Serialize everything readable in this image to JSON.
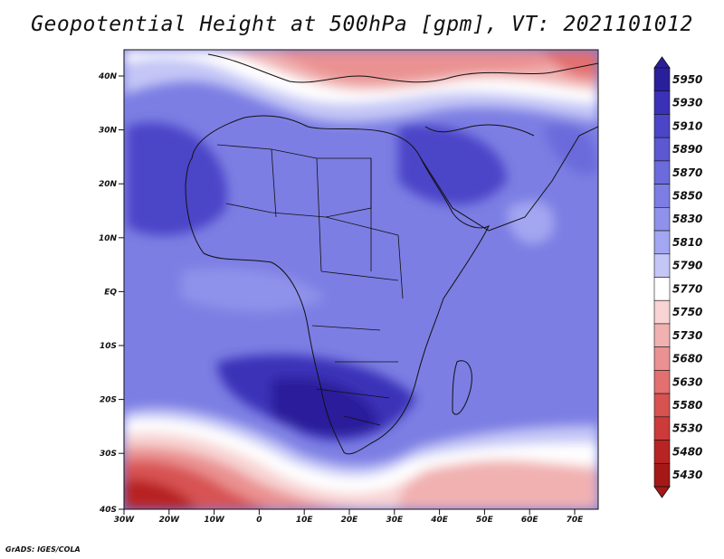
{
  "title": "Geopotential Height at 500hPa [gpm], VT: 2021101012",
  "credit": "GrADS: IGES/COLA",
  "lat_labels": [
    "40N",
    "30N",
    "20N",
    "10N",
    "EQ",
    "10S",
    "20S",
    "30S",
    "40S"
  ],
  "lon_labels": [
    "30W",
    "20W",
    "10W",
    "0",
    "10E",
    "20E",
    "30E",
    "40E",
    "50E",
    "60E",
    "70E"
  ],
  "colorbar": {
    "levels": [
      "5950",
      "5930",
      "5910",
      "5890",
      "5870",
      "5850",
      "5830",
      "5810",
      "5790",
      "5770",
      "5750",
      "5730",
      "5680",
      "5630",
      "5580",
      "5530",
      "5480",
      "5430"
    ],
    "colors": [
      "#2a1f9a",
      "#3a31b8",
      "#4b45c8",
      "#5b58d2",
      "#6b6bdb",
      "#7c7ee3",
      "#8f92ea",
      "#a3a6f0",
      "#c4c6f6",
      "#ffffff",
      "#f8d3d3",
      "#f1b1b1",
      "#ea9191",
      "#e27070",
      "#d85252",
      "#cc3a3a",
      "#b82424",
      "#a51818"
    ]
  }
}
